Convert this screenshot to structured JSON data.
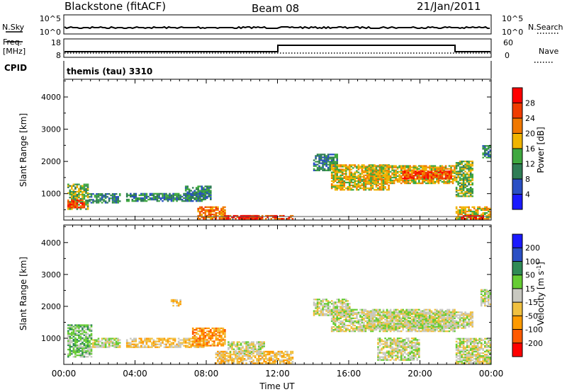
{
  "header": {
    "station": "Blackstone (fitACF)",
    "beam": "Beam 08",
    "date": "21/Jan/2011"
  },
  "panel_labels": {
    "nsky": "N.Sky",
    "nsearch": "N.Search",
    "freq_line1": "Freq.",
    "freq_line2": "[MHz]",
    "nave": "Nave",
    "cpid": "CPID",
    "cpid_value": "themis (tau) 3310"
  },
  "small_ticks": {
    "noise_left_top": "10^5",
    "noise_left_bottom": "10^0",
    "noise_right_top": "10^5",
    "noise_right_bottom": "10^0",
    "freq_top": "18",
    "freq_bottom": "8",
    "nave_top": "60",
    "nave_bottom": "0"
  },
  "colors": {
    "power_scale": [
      "#1a1aff",
      "#2a4fc4",
      "#2f7d55",
      "#3fa83f",
      "#f0b400",
      "#f07800",
      "#f03c00",
      "#ff0000"
    ],
    "velocity_scale": [
      "#ff0000",
      "#ff5a00",
      "#ff9a00",
      "#f0c040",
      "#c8c8c0",
      "#66cc33",
      "#2f8a55",
      "#2a4fc4",
      "#1a1aff"
    ]
  },
  "chart_data": [
    {
      "type": "heatmap",
      "name": "power",
      "xlabel": "Time UT",
      "ylabel": "Slant Range [km]",
      "x_tick_labels": [
        "00:00",
        "04:00",
        "08:00",
        "12:00",
        "16:00",
        "20:00",
        "00:00"
      ],
      "xlim_hours": [
        0,
        24
      ],
      "y_ticks": [
        1000,
        2000,
        3000,
        4000
      ],
      "ylim_km": [
        180,
        4550
      ],
      "colorbar_label": "Power [dB]",
      "colorbar_ticks": [
        "28",
        "24",
        "20",
        "16",
        "12",
        "8",
        "4"
      ],
      "colorbar_range": [
        0,
        32
      ],
      "regions": [
        {
          "t": [
            0.2,
            1.4
          ],
          "r": [
            500,
            1300
          ],
          "level": 3
        },
        {
          "t": [
            0.2,
            1.2
          ],
          "r": [
            550,
            800
          ],
          "level": 6
        },
        {
          "t": [
            1.4,
            3.2
          ],
          "r": [
            700,
            1000
          ],
          "level": 2
        },
        {
          "t": [
            3.5,
            7.8
          ],
          "r": [
            750,
            1000
          ],
          "level": 2
        },
        {
          "t": [
            6.8,
            8.2
          ],
          "r": [
            800,
            1250
          ],
          "level": 2
        },
        {
          "t": [
            7.5,
            9.0
          ],
          "r": [
            200,
            600
          ],
          "level": 5
        },
        {
          "t": [
            9.0,
            12.8
          ],
          "r": [
            200,
            320
          ],
          "level": 6
        },
        {
          "t": [
            9.8,
            10.8
          ],
          "r": [
            200,
            320
          ],
          "level": 7
        },
        {
          "t": [
            14.0,
            15.3
          ],
          "r": [
            1700,
            2200
          ],
          "level": 2
        },
        {
          "t": [
            15.0,
            18.3
          ],
          "r": [
            1100,
            1900
          ],
          "level": 4
        },
        {
          "t": [
            17.0,
            22.0
          ],
          "r": [
            1300,
            1850
          ],
          "level": 4
        },
        {
          "t": [
            19.0,
            21.8
          ],
          "r": [
            1450,
            1700
          ],
          "level": 6
        },
        {
          "t": [
            22.0,
            23.0
          ],
          "r": [
            900,
            2000
          ],
          "level": 3
        },
        {
          "t": [
            22.0,
            24.0
          ],
          "r": [
            200,
            600
          ],
          "level": 4
        },
        {
          "t": [
            22.3,
            23.6
          ],
          "r": [
            200,
            300
          ],
          "level": 7
        },
        {
          "t": [
            23.5,
            24.0
          ],
          "r": [
            2100,
            2500
          ],
          "level": 2
        }
      ]
    },
    {
      "type": "heatmap",
      "name": "velocity",
      "xlabel": "Time UT",
      "ylabel": "Slant Range [km]",
      "x_tick_labels": [
        "00:00",
        "04:00",
        "08:00",
        "12:00",
        "16:00",
        "20:00",
        "00:00"
      ],
      "xlim_hours": [
        0,
        24
      ],
      "y_ticks": [
        1000,
        2000,
        3000,
        4000
      ],
      "ylim_km": [
        180,
        4550
      ],
      "colorbar_label": "Velocity [m s^-1]",
      "colorbar_ticks": [
        "200",
        "100",
        "50",
        "15",
        "-15",
        "-50",
        "-100",
        "-200"
      ],
      "colorbar_range": [
        -250,
        250
      ],
      "regions": [
        {
          "t": [
            0.2,
            1.6
          ],
          "r": [
            400,
            1400
          ],
          "level": 5
        },
        {
          "t": [
            1.6,
            3.2
          ],
          "r": [
            700,
            1000
          ],
          "level": 4
        },
        {
          "t": [
            3.5,
            8.0
          ],
          "r": [
            700,
            1000
          ],
          "level": 3
        },
        {
          "t": [
            7.2,
            9.0
          ],
          "r": [
            750,
            1300
          ],
          "level": 2
        },
        {
          "t": [
            8.5,
            12.8
          ],
          "r": [
            200,
            600
          ],
          "level": 3
        },
        {
          "t": [
            9.2,
            11.2
          ],
          "r": [
            500,
            900
          ],
          "level": 4
        },
        {
          "t": [
            14.0,
            16.0
          ],
          "r": [
            1700,
            2200
          ],
          "level": 4
        },
        {
          "t": [
            15.0,
            22.0
          ],
          "r": [
            1200,
            1900
          ],
          "level": 4
        },
        {
          "t": [
            17.0,
            23.0
          ],
          "r": [
            1300,
            1800
          ],
          "level": 4
        },
        {
          "t": [
            17.6,
            20.0
          ],
          "r": [
            300,
            1000
          ],
          "level": 4
        },
        {
          "t": [
            22.0,
            24.0
          ],
          "r": [
            200,
            1000
          ],
          "level": 4
        },
        {
          "t": [
            23.4,
            24.0
          ],
          "r": [
            2000,
            2500
          ],
          "level": 4
        },
        {
          "t": [
            6.0,
            6.5
          ],
          "r": [
            2000,
            2200
          ],
          "level": 3
        }
      ]
    }
  ]
}
